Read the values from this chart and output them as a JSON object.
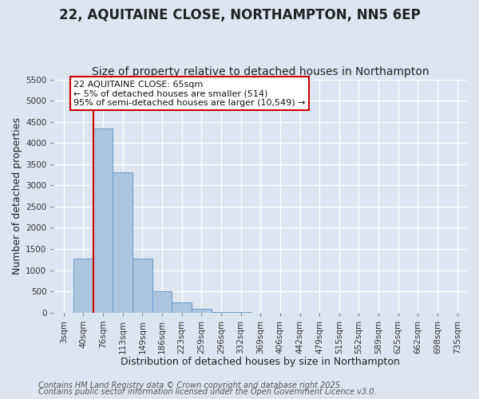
{
  "title": "22, AQUITAINE CLOSE, NORTHAMPTON, NN5 6EP",
  "subtitle": "Size of property relative to detached houses in Northampton",
  "xlabel": "Distribution of detached houses by size in Northampton",
  "ylabel": "Number of detached properties",
  "bar_labels": [
    "3sqm",
    "40sqm",
    "76sqm",
    "113sqm",
    "149sqm",
    "186sqm",
    "223sqm",
    "259sqm",
    "296sqm",
    "332sqm",
    "369sqm",
    "406sqm",
    "442sqm",
    "479sqm",
    "515sqm",
    "552sqm",
    "589sqm",
    "625sqm",
    "662sqm",
    "698sqm",
    "735sqm"
  ],
  "bar_values": [
    0,
    1270,
    4350,
    3300,
    1280,
    500,
    230,
    80,
    20,
    5,
    2,
    1,
    0,
    0,
    0,
    0,
    0,
    0,
    0,
    0,
    0
  ],
  "bar_color": "#adc6e0",
  "bar_edge_color": "#6699cc",
  "vline_color": "#cc0000",
  "annotation_line1": "22 AQUITAINE CLOSE: 65sqm",
  "annotation_line2": "← 5% of detached houses are smaller (514)",
  "annotation_line3": "95% of semi-detached houses are larger (10,549) →",
  "annotation_box_color": "#ffffff",
  "annotation_box_edge": "#cc0000",
  "ylim": [
    0,
    5500
  ],
  "yticks": [
    0,
    500,
    1000,
    1500,
    2000,
    2500,
    3000,
    3500,
    4000,
    4500,
    5000,
    5500
  ],
  "background_color": "#dde6f0",
  "grid_color": "#ffffff",
  "footer_line1": "Contains HM Land Registry data © Crown copyright and database right 2025.",
  "footer_line2": "Contains public sector information licensed under the Open Government Licence v3.0.",
  "title_fontsize": 12,
  "subtitle_fontsize": 10,
  "axis_label_fontsize": 9,
  "tick_fontsize": 7.5,
  "footer_fontsize": 7,
  "annotation_fontsize": 8
}
